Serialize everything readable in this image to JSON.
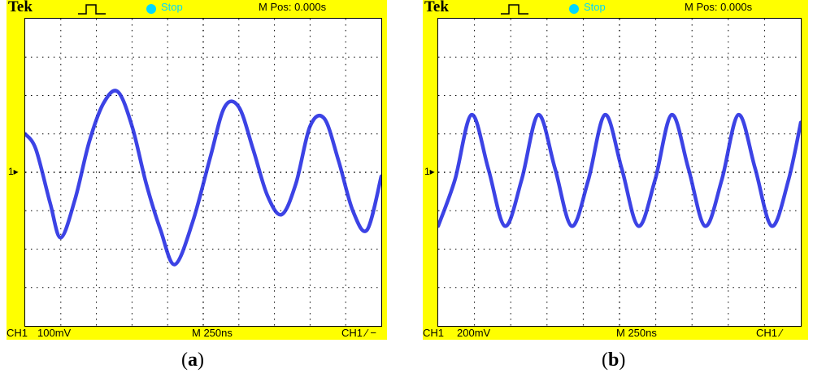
{
  "colors": {
    "bezel": "#ffff00",
    "trace": "#1a22e0",
    "stop": "#00d8ff",
    "grid": "#000000"
  },
  "scopes": [
    {
      "brand": "Tek",
      "run_state": "Stop",
      "m_pos": "M Pos: 0.000s",
      "channel": "CH1",
      "volts_div": "100mV",
      "time_div": "M 250ns",
      "trigger": "CH1 ⁄ −",
      "caption_open": "(",
      "caption_letter": "a",
      "caption_close": ")"
    },
    {
      "brand": "Tek",
      "run_state": "Stop",
      "m_pos": "M Pos: 0.000s",
      "channel": "CH1",
      "volts_div": "200mV",
      "time_div": "M 250ns",
      "trigger": "CH1 ⁄",
      "caption_open": "(",
      "caption_letter": "b",
      "caption_close": ")"
    }
  ],
  "chart_data": [
    {
      "type": "line",
      "grid": true,
      "x_divisions": 10,
      "y_divisions": 8,
      "xlim": [
        0,
        10
      ],
      "ylim": [
        -4,
        4
      ],
      "x_unit": "250 ns/div",
      "y_unit": "100 mV/div",
      "series": [
        {
          "x": [
            0,
            0.3,
            0.7,
            1.0,
            1.4,
            1.8,
            2.2,
            2.6,
            3.0,
            3.4,
            3.8,
            4.2,
            4.7,
            5.2,
            5.6,
            6.0,
            6.4,
            6.8,
            7.2,
            7.6,
            8.0,
            8.4,
            8.8,
            9.2,
            9.6,
            10
          ],
          "y": [
            1.0,
            0.6,
            -0.8,
            -1.7,
            -0.7,
            0.8,
            1.8,
            2.1,
            1.2,
            -0.3,
            -1.5,
            -2.4,
            -1.3,
            0.4,
            1.7,
            1.7,
            0.6,
            -0.6,
            -1.1,
            -0.3,
            1.2,
            1.4,
            0.3,
            -1.0,
            -1.5,
            -0.1
          ]
        }
      ]
    },
    {
      "type": "line",
      "grid": true,
      "x_divisions": 10,
      "y_divisions": 8,
      "xlim": [
        0,
        10
      ],
      "ylim": [
        -4,
        4
      ],
      "x_unit": "250 ns/div",
      "y_unit": "200 mV/div",
      "series": [
        {
          "x": [
            0,
            0.46,
            0.92,
            1.38,
            1.84,
            2.3,
            2.76,
            3.22,
            3.68,
            4.14,
            4.6,
            5.06,
            5.52,
            5.98,
            6.44,
            6.9,
            7.36,
            7.82,
            8.28,
            8.74,
            9.2,
            9.66,
            10
          ],
          "y": [
            -1.4,
            -0.2,
            1.5,
            0.1,
            -1.4,
            -0.2,
            1.5,
            0.1,
            -1.4,
            -0.2,
            1.5,
            0.1,
            -1.4,
            -0.2,
            1.5,
            0.1,
            -1.4,
            -0.2,
            1.5,
            0.1,
            -1.4,
            -0.2,
            1.3
          ]
        }
      ]
    }
  ]
}
